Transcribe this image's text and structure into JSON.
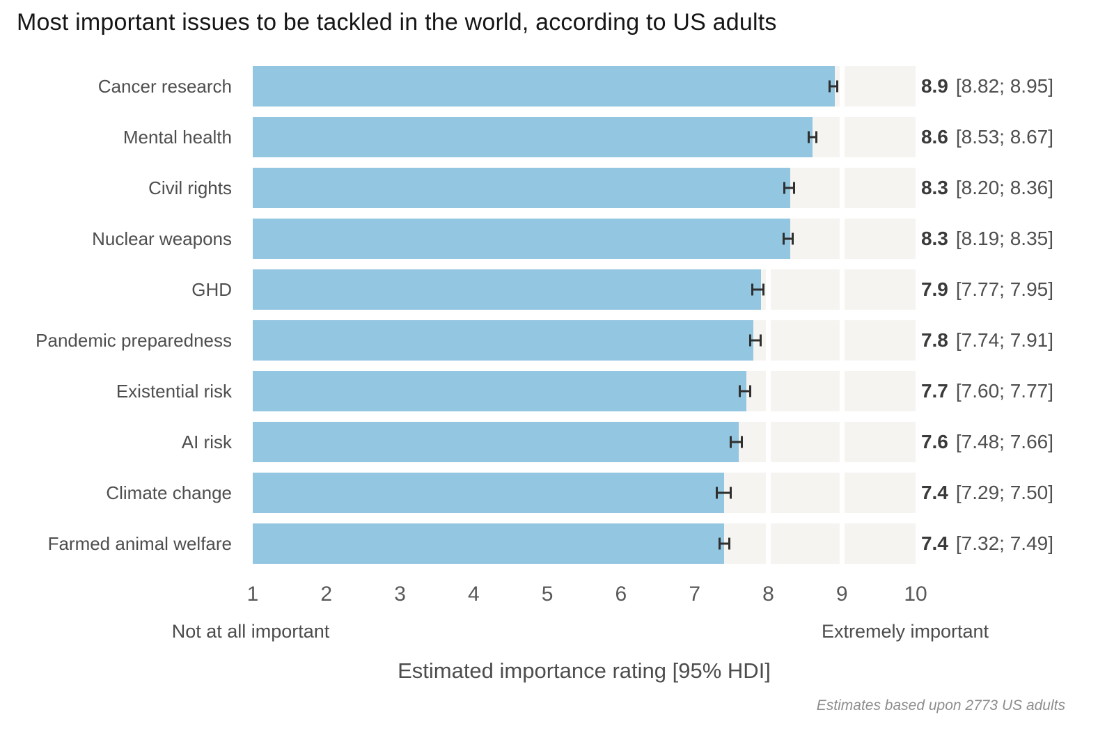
{
  "title": "Most important issues to be tackled in the world, according to US adults",
  "footnote": "Estimates based upon 2773 US adults",
  "axis": {
    "label": "Estimated importance rating [95% HDI]",
    "min_label": "Not at all important",
    "max_label": "Extremely important",
    "ticks": [
      "1",
      "2",
      "3",
      "4",
      "5",
      "6",
      "7",
      "8",
      "9",
      "10"
    ]
  },
  "chart_data": {
    "type": "bar",
    "orientation": "horizontal",
    "title": "Most important issues to be tackled in the world, according to US adults",
    "xlabel": "Estimated importance rating [95% HDI]",
    "xlim": [
      1,
      10
    ],
    "grid": "white vertical gridlines at integer breaks over light-gray full-length tracks",
    "legend": "none",
    "categories": [
      "Cancer research",
      "Mental health",
      "Civil rights",
      "Nuclear weapons",
      "GHD",
      "Pandemic preparedness",
      "Existential risk",
      "AI risk",
      "Climate change",
      "Farmed animal welfare"
    ],
    "values": [
      8.9,
      8.6,
      8.3,
      8.3,
      7.9,
      7.8,
      7.7,
      7.6,
      7.4,
      7.4
    ],
    "hdi_low": [
      8.82,
      8.53,
      8.2,
      8.19,
      7.77,
      7.74,
      7.6,
      7.48,
      7.29,
      7.32
    ],
    "hdi_high": [
      8.95,
      8.67,
      8.36,
      8.35,
      7.95,
      7.91,
      7.77,
      7.66,
      7.5,
      7.49
    ],
    "value_labels": [
      "8.9",
      "8.6",
      "8.3",
      "8.3",
      "7.9",
      "7.8",
      "7.7",
      "7.6",
      "7.4",
      "7.4"
    ],
    "interval_labels": [
      "[8.82; 8.95]",
      "[8.53; 8.67]",
      "[8.20; 8.36]",
      "[8.19; 8.35]",
      "[7.77; 7.95]",
      "[7.74; 7.91]",
      "[7.60; 7.77]",
      "[7.48; 7.66]",
      "[7.29; 7.50]",
      "[7.32; 7.49]"
    ],
    "error_bar_style": "black whisker with end caps centered on bar end"
  },
  "colors": {
    "bar": "#93c6e0",
    "track": "#f5f4f1",
    "gridline": "#ffffff",
    "error_bar": "#2f2f2f",
    "title_text": "#161616",
    "label_text": "#4e4e4e",
    "value_text": "#3a3a3a",
    "footnote_text": "#8d8d8d",
    "background": "#ffffff"
  }
}
